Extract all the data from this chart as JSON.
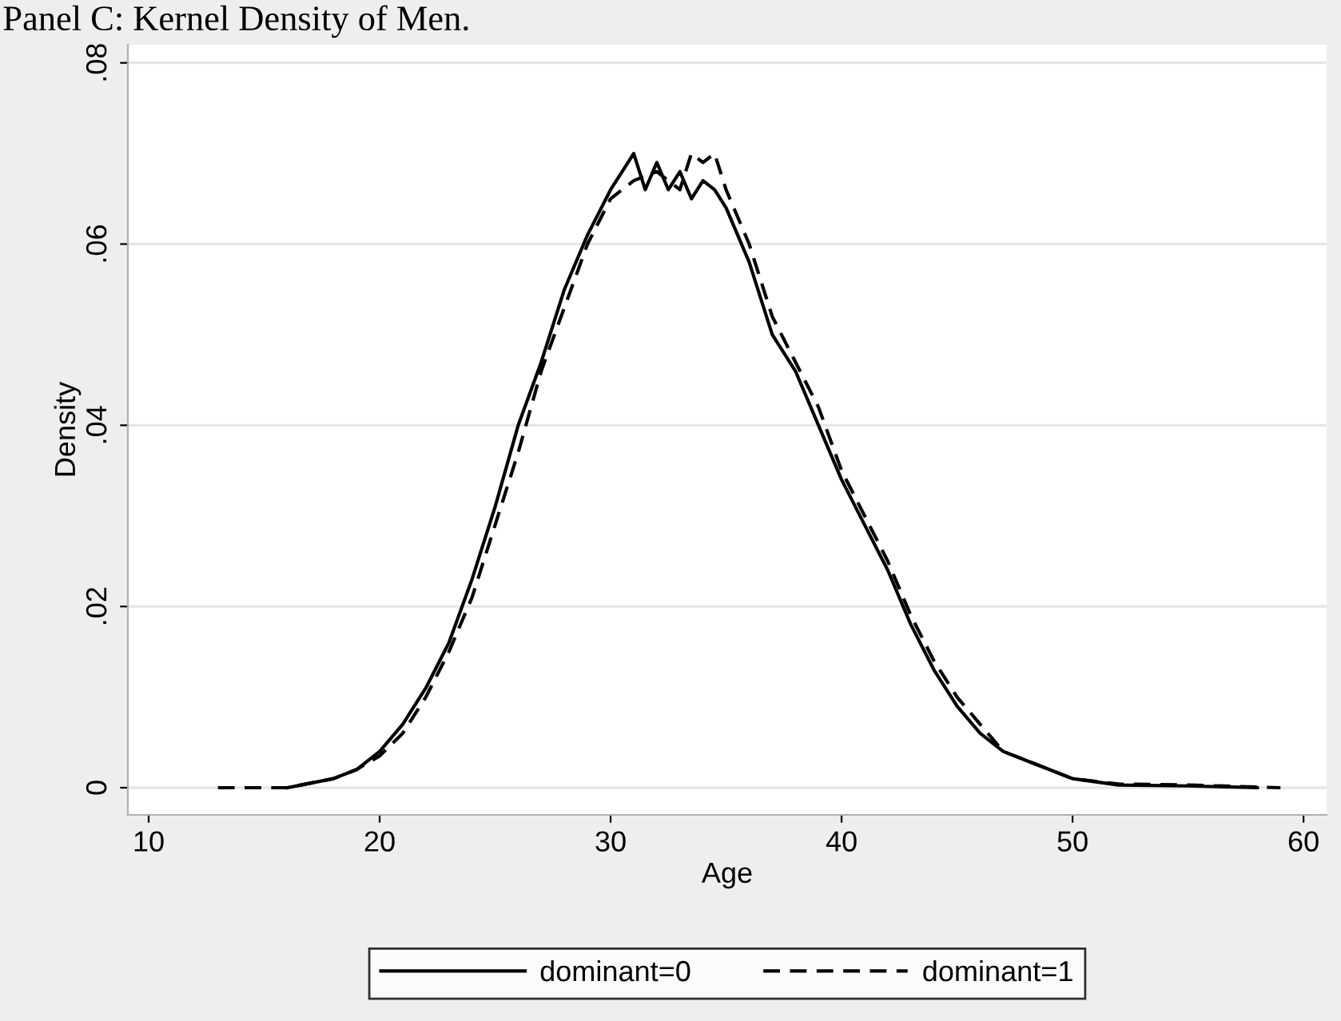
{
  "chart_data": {
    "type": "line",
    "title": "Panel C: Kernel Density of Men.",
    "xlabel": "Age",
    "ylabel": "Density",
    "xlim": [
      9.1,
      61
    ],
    "ylim": [
      -0.003,
      0.082
    ],
    "xticks": [
      10,
      20,
      30,
      40,
      50,
      60
    ],
    "yticks": [
      {
        "value": 0,
        "label": "0"
      },
      {
        "value": 0.02,
        "label": ".02"
      },
      {
        "value": 0.04,
        "label": ".04"
      },
      {
        "value": 0.06,
        "label": ".06"
      },
      {
        "value": 0.08,
        "label": ".08"
      }
    ],
    "grid": "y",
    "legend": "bottom",
    "marker": "none",
    "series": [
      {
        "name": "dominant=0",
        "color": "#000000",
        "line_style": "solid",
        "x": [
          16,
          18,
          19,
          20,
          21,
          22,
          23,
          24,
          25,
          26,
          27,
          28,
          29,
          30,
          30.5,
          31,
          31.5,
          32,
          32.5,
          33,
          33.5,
          34,
          34.5,
          35,
          36,
          37,
          38,
          39,
          40,
          41,
          42,
          43,
          44,
          45,
          46,
          47,
          48,
          49,
          50,
          52,
          55,
          58
        ],
        "values": [
          0,
          0.001,
          0.002,
          0.004,
          0.007,
          0.011,
          0.016,
          0.023,
          0.031,
          0.04,
          0.047,
          0.055,
          0.061,
          0.066,
          0.068,
          0.07,
          0.066,
          0.069,
          0.066,
          0.068,
          0.065,
          0.067,
          0.066,
          0.064,
          0.058,
          0.05,
          0.046,
          0.04,
          0.034,
          0.029,
          0.024,
          0.018,
          0.013,
          0.009,
          0.006,
          0.004,
          0.003,
          0.002,
          0.001,
          0.0003,
          0.0002,
          0
        ]
      },
      {
        "name": "dominant=1",
        "color": "#000000",
        "line_style": "dashed",
        "x": [
          13,
          16,
          18,
          19,
          20,
          21,
          22,
          23,
          24,
          25,
          26,
          27,
          28,
          29,
          30,
          31,
          32,
          33,
          33.5,
          34,
          34.5,
          35,
          36,
          37,
          38,
          39,
          40,
          41,
          42,
          43,
          44,
          45,
          46,
          47,
          48,
          49,
          50,
          52,
          55,
          59
        ],
        "values": [
          0,
          0,
          0.001,
          0.002,
          0.0035,
          0.006,
          0.01,
          0.015,
          0.021,
          0.029,
          0.037,
          0.046,
          0.053,
          0.06,
          0.065,
          0.067,
          0.068,
          0.066,
          0.07,
          0.069,
          0.07,
          0.066,
          0.06,
          0.052,
          0.047,
          0.042,
          0.035,
          0.03,
          0.025,
          0.019,
          0.014,
          0.01,
          0.007,
          0.004,
          0.003,
          0.002,
          0.001,
          0.0004,
          0.0003,
          0
        ]
      }
    ]
  }
}
